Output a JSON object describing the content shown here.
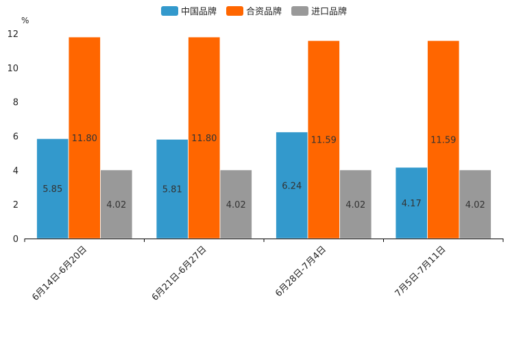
{
  "chart_data": {
    "type": "bar",
    "unit": "%",
    "categories": [
      "6月14日-6月20日",
      "6月21日-6月27日",
      "6月28日-7月4日",
      "7月5日-7月11日"
    ],
    "series": [
      {
        "name": "中国品牌",
        "color": "#3399cc",
        "values": [
          5.85,
          5.81,
          6.24,
          4.17
        ],
        "labels": [
          "5.85",
          "5.81",
          "6.24",
          "4.17"
        ]
      },
      {
        "name": "合资品牌",
        "color": "#ff6600",
        "values": [
          11.8,
          11.8,
          11.59,
          11.59
        ],
        "labels": [
          "11.80",
          "11.80",
          "11.59",
          "11.59"
        ]
      },
      {
        "name": "进口品牌",
        "color": "#999999",
        "values": [
          4.02,
          4.02,
          4.02,
          4.02
        ],
        "labels": [
          "4.02",
          "4.02",
          "4.02",
          "4.02"
        ]
      }
    ],
    "ylim": [
      0,
      12
    ],
    "yticks": [
      "0",
      "2",
      "4",
      "6",
      "8",
      "10",
      "12"
    ],
    "legend_position": "top-center",
    "grid": false
  }
}
